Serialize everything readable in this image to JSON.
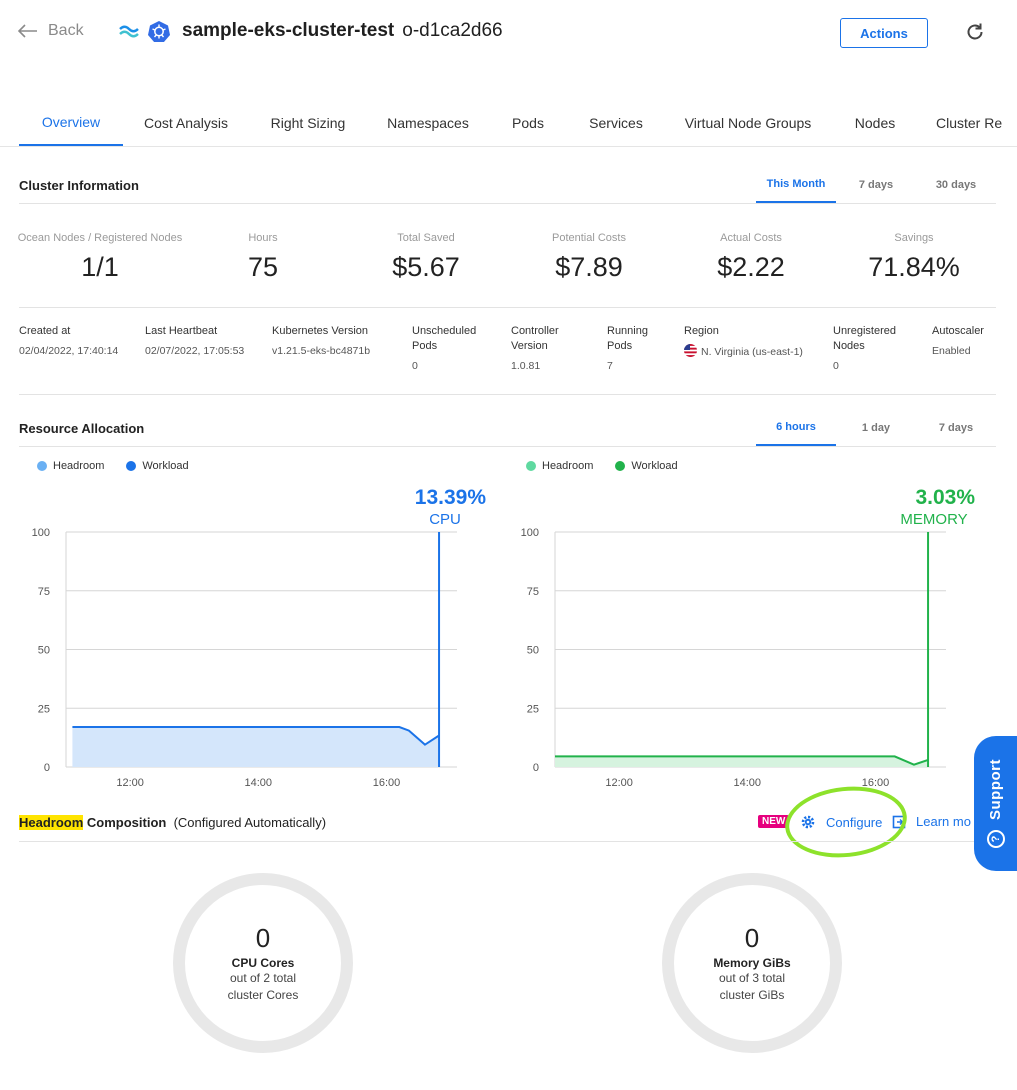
{
  "header": {
    "back_label": "Back",
    "cluster_name": "sample-eks-cluster-test",
    "cluster_id": "o-d1ca2d66",
    "actions_label": "Actions"
  },
  "tabs": [
    {
      "label": "Overview",
      "active": true
    },
    {
      "label": "Cost Analysis"
    },
    {
      "label": "Right Sizing"
    },
    {
      "label": "Namespaces"
    },
    {
      "label": "Pods"
    },
    {
      "label": "Services"
    },
    {
      "label": "Virtual Node Groups"
    },
    {
      "label": "Nodes"
    },
    {
      "label": "Cluster Re"
    }
  ],
  "cluster_info": {
    "title": "Cluster Information",
    "periods": [
      "This Month",
      "7 days",
      "30 days"
    ],
    "active_period": "This Month",
    "kpis": [
      {
        "label": "Ocean Nodes / Registered Nodes",
        "value": "1/1"
      },
      {
        "label": "Hours",
        "value": "75"
      },
      {
        "label": "Total Saved",
        "value": "$5.67"
      },
      {
        "label": "Potential Costs",
        "value": "$7.89"
      },
      {
        "label": "Actual Costs",
        "value": "$2.22"
      },
      {
        "label": "Savings",
        "value": "71.84%"
      }
    ],
    "details": [
      {
        "label": "Created at",
        "value": "02/04/2022, 17:40:14"
      },
      {
        "label": "Last Heartbeat",
        "value": "02/07/2022, 17:05:53"
      },
      {
        "label": "Kubernetes Version",
        "value": "v1.21.5-eks-bc4871b"
      },
      {
        "label": "Unscheduled Pods",
        "value": "0"
      },
      {
        "label": "Controller Version",
        "value": "1.0.81"
      },
      {
        "label": "Running Pods",
        "value": "7"
      },
      {
        "label": "Region",
        "value": "N. Virginia (us-east-1)"
      },
      {
        "label": "Unregistered Nodes",
        "value": "0"
      },
      {
        "label": "Autoscaler",
        "value": "Enabled"
      }
    ]
  },
  "resource_allocation": {
    "title": "Resource Allocation",
    "periods": [
      "6 hours",
      "1 day",
      "7 days"
    ],
    "active_period": "6 hours",
    "legend_cpu": [
      {
        "name": "Headroom",
        "color": "#6ab0f3"
      },
      {
        "name": "Workload",
        "color": "#1b73e8"
      }
    ],
    "legend_mem": [
      {
        "name": "Headroom",
        "color": "#5fd9a0"
      },
      {
        "name": "Workload",
        "color": "#21b24b"
      }
    ]
  },
  "chart_data": [
    {
      "type": "area",
      "title": "CPU",
      "headline": "13.39%",
      "color": "#1b73e8",
      "fill": "#d4e6fb",
      "ylim": [
        0,
        100
      ],
      "yticks": [
        0,
        25,
        50,
        75,
        100
      ],
      "xticks": [
        "12:00",
        "14:00",
        "16:00"
      ],
      "x_hours": [
        11.1,
        11.5,
        12.0,
        12.5,
        13.0,
        13.5,
        14.0,
        14.5,
        15.0,
        15.5,
        16.0,
        16.2,
        16.35,
        16.6,
        16.82
      ],
      "values": [
        17,
        17,
        17,
        17,
        17,
        17,
        17,
        17,
        17,
        17,
        17,
        17,
        15.5,
        9.5,
        13.4
      ],
      "spike_hour": 16.82,
      "xlim_hours": [
        11.0,
        17.1
      ]
    },
    {
      "type": "area",
      "title": "MEMORY",
      "headline": "3.03%",
      "color": "#21b24b",
      "fill": "#d6f3df",
      "ylim": [
        0,
        100
      ],
      "yticks": [
        0,
        25,
        50,
        75,
        100
      ],
      "xticks": [
        "12:00",
        "14:00",
        "16:00"
      ],
      "x_hours": [
        11.0,
        11.5,
        12.0,
        12.5,
        13.0,
        13.5,
        14.0,
        14.5,
        15.0,
        15.5,
        16.0,
        16.3,
        16.6,
        16.82
      ],
      "values": [
        4.5,
        4.5,
        4.5,
        4.5,
        4.5,
        4.5,
        4.5,
        4.5,
        4.5,
        4.5,
        4.5,
        4.5,
        1,
        3.0
      ],
      "spike_hour": 16.82,
      "xlim_hours": [
        11.0,
        17.1
      ]
    }
  ],
  "headroom": {
    "title_highlight": "Headroom",
    "title_bold": " Composition",
    "title_note": "  (Configured Automatically)",
    "new_badge": "NEW",
    "configure_label": "Configure",
    "learn_label": "Learn mo",
    "cpu": {
      "value": "0",
      "label": "CPU Cores",
      "sub1": "out of 2 total",
      "sub2": "cluster Cores"
    },
    "mem": {
      "value": "0",
      "label": "Memory GiBs",
      "sub1": "out of 3 total",
      "sub2": "cluster GiBs"
    }
  },
  "support_label": "Support"
}
